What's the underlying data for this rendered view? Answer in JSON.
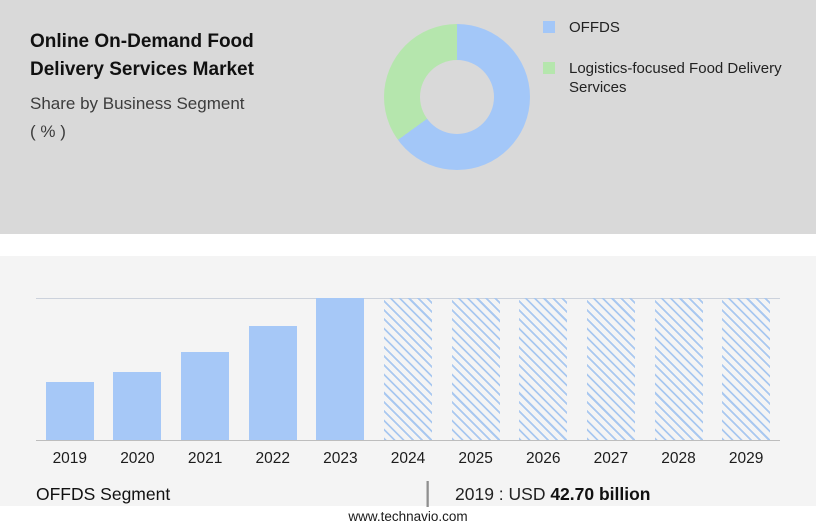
{
  "header": {
    "title_line1": "Online On-Demand Food",
    "title_line2": "Delivery Services Market",
    "subtitle_line1": "Share by Business Segment",
    "subtitle_line2": "( % )"
  },
  "legend": {
    "items": [
      {
        "label": "OFFDS",
        "color": "#a3c7f8"
      },
      {
        "label": "Logistics-focused Food Delivery Services",
        "color": "#b5e6ad"
      }
    ]
  },
  "chart_data": [
    {
      "type": "pie",
      "title": "Share by Business Segment (%)",
      "labels": [
        "OFFDS",
        "Logistics-focused Food Delivery Services"
      ],
      "values": [
        65,
        35
      ],
      "colors": [
        "#a3c7f8",
        "#b5e6ad"
      ],
      "donut": true,
      "legend_position": "right"
    },
    {
      "type": "bar",
      "title": "OFFDS Segment",
      "categories": [
        "2019",
        "2020",
        "2021",
        "2022",
        "2023",
        "2024",
        "2025",
        "2026",
        "2027",
        "2028",
        "2029"
      ],
      "values": [
        42.7,
        50,
        64,
        83,
        104,
        null,
        null,
        null,
        null,
        null,
        null
      ],
      "heights_pct_of_max": [
        41,
        48,
        62,
        80,
        100,
        100,
        100,
        100,
        100,
        100,
        100
      ],
      "forecast_from_index": 5,
      "bar_color": "#a6c8f7",
      "xlabel": "",
      "ylabel": "",
      "grid": "top-line-only",
      "annotation": "2019 : USD 42.70 billion"
    }
  ],
  "footer": {
    "segment_label": "OFFDS Segment",
    "separator": "|",
    "value_prefix": "2019 : USD ",
    "value_bold": "42.70 billion",
    "website": "www.technavio.com"
  },
  "colors": {
    "top_panel_bg": "#d9d9d9",
    "bottom_panel_bg": "#f4f4f4",
    "bar_actual": "#a6c8f7",
    "bar_forecast_hatch": "#a9c8f0",
    "pie_blue": "#a3c7f8",
    "pie_green": "#b5e6ad"
  }
}
